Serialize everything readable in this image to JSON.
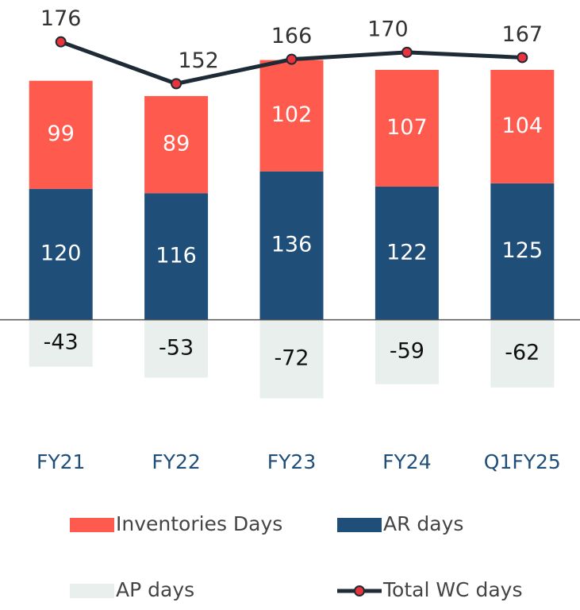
{
  "chart_data": {
    "type": "bar",
    "categories": [
      "FY21",
      "FY22",
      "FY23",
      "FY24",
      "Q1FY25"
    ],
    "series": [
      {
        "name": "Inventories Days",
        "type": "bar",
        "color": "#ff5a4e",
        "label_color": "#ffffff",
        "values": [
          99,
          89,
          102,
          107,
          104
        ]
      },
      {
        "name": "AR days",
        "type": "bar",
        "color": "#1f4e79",
        "label_color": "#ffffff",
        "values": [
          120,
          116,
          136,
          122,
          125
        ]
      },
      {
        "name": "AP days",
        "type": "bar",
        "color": "#e8efed",
        "label_color": "#111111",
        "values": [
          -43,
          -53,
          -72,
          -59,
          -62
        ]
      },
      {
        "name": "Total WC days",
        "type": "line",
        "axis": "y2",
        "color": "#1e2a35",
        "marker_color": "#e8323c",
        "label_color": "#333333",
        "values": [
          176,
          152,
          166,
          170,
          167
        ]
      }
    ],
    "ylim": [
      -100,
      293
    ],
    "y2lim": [
      -46,
      200
    ]
  }
}
